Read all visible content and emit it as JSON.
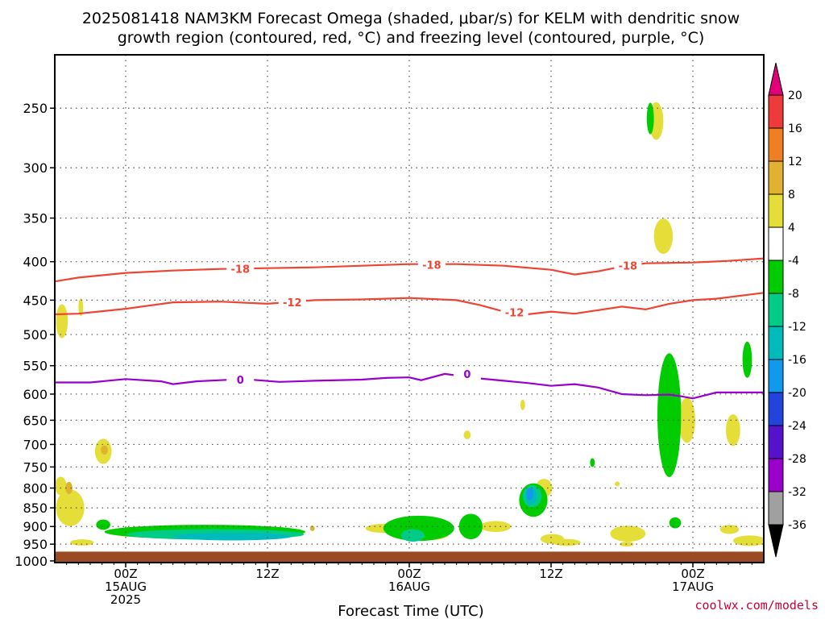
{
  "title_line1": "2025081418 NAM3KM Forecast Omega (shaded, μbar/s) for KELM with dendritic snow",
  "title_line2": "growth region (contoured, red, °C) and freezing level (contoured, purple, °C)",
  "x_axis_title": "Forecast Time (UTC)",
  "credit": "coolwx.com/models",
  "colors": {
    "ground": "#9c4a24",
    "dendritic_contour": "#ee4433",
    "freezing_contour": "#9900cc",
    "grid": "#555555"
  },
  "chart_data": {
    "type": "time-height cross section",
    "y_scale": "log pressure (mb), inverted",
    "ylim": [
      1000,
      200
    ],
    "y_ticks": [
      250,
      300,
      350,
      400,
      450,
      500,
      550,
      600,
      650,
      700,
      750,
      800,
      850,
      900,
      950,
      1000
    ],
    "x_range_hours": [
      -6,
      54
    ],
    "x_ticks": [
      {
        "hour": 0,
        "lines": [
          "00Z",
          "15AUG",
          "2025"
        ]
      },
      {
        "hour": 12,
        "lines": [
          "12Z"
        ]
      },
      {
        "hour": 24,
        "lines": [
          "00Z",
          "16AUG"
        ]
      },
      {
        "hour": 36,
        "lines": [
          "12Z"
        ]
      },
      {
        "hour": 48,
        "lines": [
          "00Z",
          "17AUG"
        ]
      }
    ],
    "grid": true,
    "ground_level_mb": 972,
    "colorbar": {
      "label_values": [
        20,
        16,
        12,
        8,
        4,
        -4,
        -8,
        -12,
        -16,
        -20,
        -24,
        -28,
        -32,
        -36
      ],
      "bins": [
        {
          "range": "> 20",
          "color": "#e0007a"
        },
        {
          "range": "16 to 20",
          "color": "#ee3a3a"
        },
        {
          "range": "12 to 16",
          "color": "#ee7f22"
        },
        {
          "range": "8 to 12",
          "color": "#e0b230"
        },
        {
          "range": "4 to 8",
          "color": "#e5dd38"
        },
        {
          "range": "-4 to 4",
          "color": "#ffffff"
        },
        {
          "range": "-8 to -4",
          "color": "#00cc00"
        },
        {
          "range": "-12 to -8",
          "color": "#00cc88"
        },
        {
          "range": "-16 to -12",
          "color": "#00bbbb"
        },
        {
          "range": "-20 to -16",
          "color": "#1199ee"
        },
        {
          "range": "-24 to -20",
          "color": "#2244dd"
        },
        {
          "range": "-28 to -24",
          "color": "#5511cc"
        },
        {
          "range": "-32 to -28",
          "color": "#9900cc"
        },
        {
          "range": "-36 to -32",
          "color": "#a0a0a0"
        },
        {
          "range": "< -36",
          "color": "#000000"
        }
      ]
    },
    "contours": [
      {
        "name": "-18",
        "color": "#ee4433",
        "points": [
          [
            -6,
            425
          ],
          [
            -4,
            420
          ],
          [
            0,
            414
          ],
          [
            4,
            411
          ],
          [
            8,
            409
          ],
          [
            12,
            408
          ],
          [
            16,
            407
          ],
          [
            20,
            405
          ],
          [
            24,
            403
          ],
          [
            28,
            403
          ],
          [
            32,
            405
          ],
          [
            36,
            410
          ],
          [
            38,
            416
          ],
          [
            40,
            412
          ],
          [
            42,
            406
          ],
          [
            44,
            402
          ],
          [
            48,
            401
          ],
          [
            51,
            399
          ],
          [
            54,
            396
          ]
        ],
        "labels": [
          [
            9.7,
            409
          ],
          [
            25.9,
            404
          ],
          [
            42.5,
            405
          ]
        ]
      },
      {
        "name": "-12",
        "color": "#ee4433",
        "points": [
          [
            -6,
            470
          ],
          [
            -4,
            469
          ],
          [
            0,
            462
          ],
          [
            4,
            453
          ],
          [
            8,
            452
          ],
          [
            12,
            455
          ],
          [
            16,
            450
          ],
          [
            20,
            449
          ],
          [
            24,
            447
          ],
          [
            28,
            450
          ],
          [
            30,
            457
          ],
          [
            32,
            466
          ],
          [
            34,
            470
          ],
          [
            36,
            466
          ],
          [
            38,
            469
          ],
          [
            42,
            459
          ],
          [
            44,
            463
          ],
          [
            46,
            455
          ],
          [
            48,
            450
          ],
          [
            50,
            448
          ],
          [
            54,
            440
          ]
        ],
        "labels": [
          [
            14.1,
            453
          ],
          [
            32.9,
            467
          ]
        ]
      },
      {
        "name": "0",
        "color": "#9900cc",
        "points": [
          [
            -6,
            579
          ],
          [
            -3,
            579
          ],
          [
            0,
            573
          ],
          [
            3,
            577
          ],
          [
            4,
            582
          ],
          [
            6,
            577
          ],
          [
            8,
            575
          ],
          [
            10,
            573
          ],
          [
            13,
            578
          ],
          [
            16,
            576
          ],
          [
            20,
            574
          ],
          [
            22,
            571
          ],
          [
            24,
            570
          ],
          [
            25,
            575
          ],
          [
            27,
            564
          ],
          [
            30,
            572
          ],
          [
            34,
            580
          ],
          [
            36,
            585
          ],
          [
            38,
            582
          ],
          [
            40,
            588
          ],
          [
            42,
            600
          ],
          [
            44,
            602
          ],
          [
            46,
            601
          ],
          [
            47,
            604
          ],
          [
            48,
            608
          ],
          [
            50,
            597
          ],
          [
            54,
            597
          ]
        ],
        "labels": [
          [
            9.7,
            574
          ],
          [
            28.9,
            564
          ]
        ]
      }
    ],
    "shaded_regions": [
      {
        "bin": "4 to 8",
        "blobs": [
          [
            -5.4,
            480,
            0.5,
            50
          ],
          [
            -3.8,
            460,
            0.2,
            25
          ],
          [
            -4.7,
            850,
            1.2,
            95
          ],
          [
            -1.9,
            715,
            0.7,
            55
          ],
          [
            -3.7,
            945,
            1.0,
            18
          ],
          [
            -5.5,
            795,
            0.5,
            45
          ],
          [
            21.8,
            905,
            1.5,
            25
          ],
          [
            25.9,
            920,
            1.5,
            35
          ],
          [
            28.9,
            680,
            0.3,
            18
          ],
          [
            31.3,
            900,
            1.3,
            30
          ],
          [
            35.4,
            800,
            0.7,
            45
          ],
          [
            36.1,
            935,
            1.0,
            28
          ],
          [
            37.3,
            945,
            1.2,
            20
          ],
          [
            41.6,
            790,
            0.2,
            10
          ],
          [
            42.5,
            920,
            1.5,
            45
          ],
          [
            44.9,
            260,
            0.6,
            30
          ],
          [
            45.5,
            370,
            0.8,
            40
          ],
          [
            47.5,
            650,
            0.7,
            90
          ],
          [
            51.4,
            670,
            0.6,
            65
          ],
          [
            51.1,
            908,
            0.8,
            25
          ],
          [
            52.8,
            940,
            1.4,
            30
          ],
          [
            33.6,
            620,
            0.2,
            20
          ],
          [
            42.4,
            950,
            0.6,
            12
          ]
        ]
      },
      {
        "bin": "8 to 12",
        "blobs": [
          [
            -4.8,
            800,
            0.3,
            30
          ],
          [
            -1.8,
            712,
            0.3,
            20
          ],
          [
            15.8,
            905,
            0.2,
            15
          ]
        ]
      },
      {
        "bin": "-8 to -4",
        "blobs": [
          [
            -1.9,
            895,
            0.6,
            28
          ],
          [
            6.7,
            915,
            8.5,
            40
          ],
          [
            24.8,
            905,
            3.0,
            70
          ],
          [
            29.2,
            900,
            1.0,
            70
          ],
          [
            34.5,
            830,
            1.2,
            85
          ],
          [
            39.5,
            740,
            0.2,
            20
          ],
          [
            44.4,
            258,
            0.3,
            25
          ],
          [
            46.0,
            640,
            1.0,
            240
          ],
          [
            46.5,
            890,
            0.5,
            30
          ],
          [
            52.6,
            540,
            0.4,
            60
          ]
        ]
      },
      {
        "bin": "-12 to -8",
        "blobs": [
          [
            7.6,
            922,
            7.5,
            30
          ],
          [
            24.3,
            925,
            1.0,
            35
          ],
          [
            34.4,
            820,
            0.8,
            55
          ]
        ]
      },
      {
        "bin": "-16 to -12",
        "blobs": [
          [
            9.0,
            928,
            5.0,
            22
          ],
          [
            34.3,
            820,
            0.5,
            45
          ]
        ]
      },
      {
        "bin": "-20 to -16",
        "blobs": [
          [
            34.2,
            815,
            0.3,
            30
          ]
        ]
      }
    ]
  }
}
